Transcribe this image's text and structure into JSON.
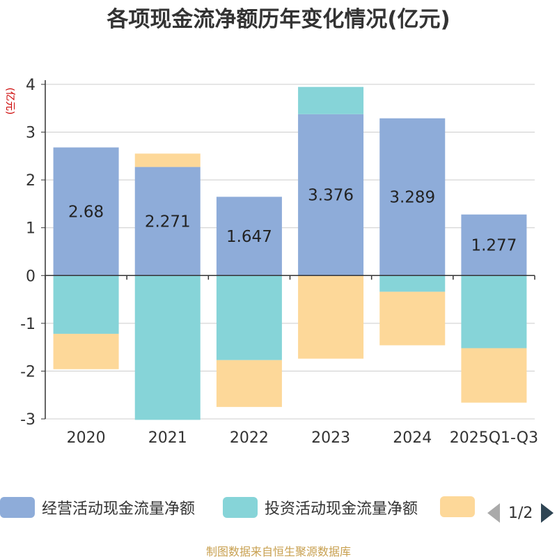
{
  "chart_data": {
    "type": "bar",
    "stacked": true,
    "title": "各项现金流净额历年变化情况(亿元)",
    "ylabel": "(亿元)",
    "xlabel": "",
    "ylim": [
      -3,
      4
    ],
    "yticks": [
      -3,
      -2,
      -1,
      0,
      1,
      2,
      3,
      4
    ],
    "categories": [
      "2020",
      "2021",
      "2022",
      "2023",
      "2024",
      "2025Q1-Q3"
    ],
    "series": [
      {
        "name": "经营活动现金流量净额",
        "color": "#8eacd9",
        "values": [
          2.68,
          2.271,
          1.647,
          3.376,
          3.289,
          1.277
        ],
        "labels": [
          "2.68",
          "2.271",
          "1.647",
          "3.376",
          "3.289",
          "1.277"
        ]
      },
      {
        "name": "投资活动现金流量净额",
        "color": "#86d4d8",
        "values": [
          -1.22,
          -3.02,
          -1.77,
          0.57,
          -0.34,
          -1.52
        ]
      },
      {
        "name": "",
        "color": "#fdd899",
        "values": [
          -0.74,
          0.28,
          -0.98,
          -1.74,
          -1.12,
          -1.14
        ]
      }
    ],
    "grid": true
  },
  "legend": {
    "items": [
      {
        "label": "经营活动现金流量净额",
        "color": "#8eacd9"
      },
      {
        "label": "投资活动现金流量净额",
        "color": "#86d4d8"
      },
      {
        "label": "",
        "color": "#fdd899"
      }
    ],
    "page": "1/2"
  },
  "source": "制图数据来自恒生聚源数据库"
}
